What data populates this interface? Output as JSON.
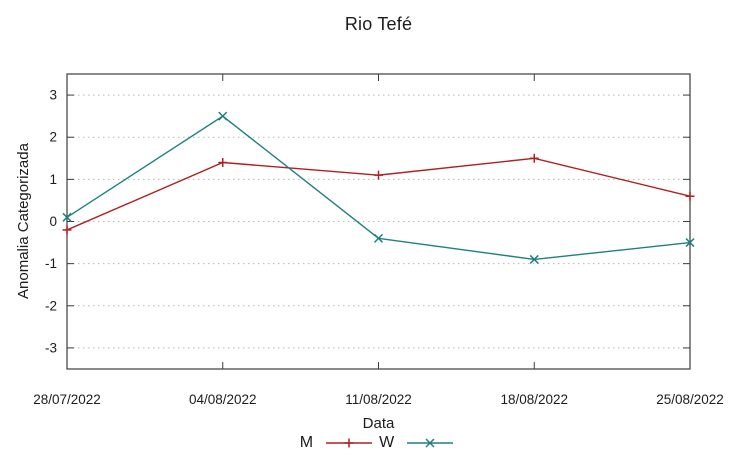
{
  "title": "Rio Tefé",
  "chart_data": {
    "type": "line",
    "title": "Rio Tefé",
    "xlabel": "Data",
    "ylabel": "Anomalia Categorizada",
    "categories": [
      "28/07/2022",
      "04/08/2022",
      "11/08/2022",
      "18/08/2022",
      "25/08/2022"
    ],
    "series": [
      {
        "name": "M",
        "values": [
          -0.2,
          1.4,
          1.1,
          1.5,
          0.6
        ],
        "color": "#b02020",
        "marker": "plus"
      },
      {
        "name": "W",
        "values": [
          0.1,
          2.5,
          -0.4,
          -0.9,
          -0.5
        ],
        "color": "#1f8080",
        "marker": "cross"
      }
    ],
    "ylim": [
      -3.5,
      3.5
    ],
    "yticks": [
      -3,
      -2,
      -1,
      0,
      1,
      2,
      3
    ],
    "grid": true,
    "grid_style": "dotted",
    "legend_position": "below-center",
    "colors": {
      "axis": "#3c3c3c",
      "grid": "#b8b8b8",
      "text": "#1c1c1c"
    }
  }
}
